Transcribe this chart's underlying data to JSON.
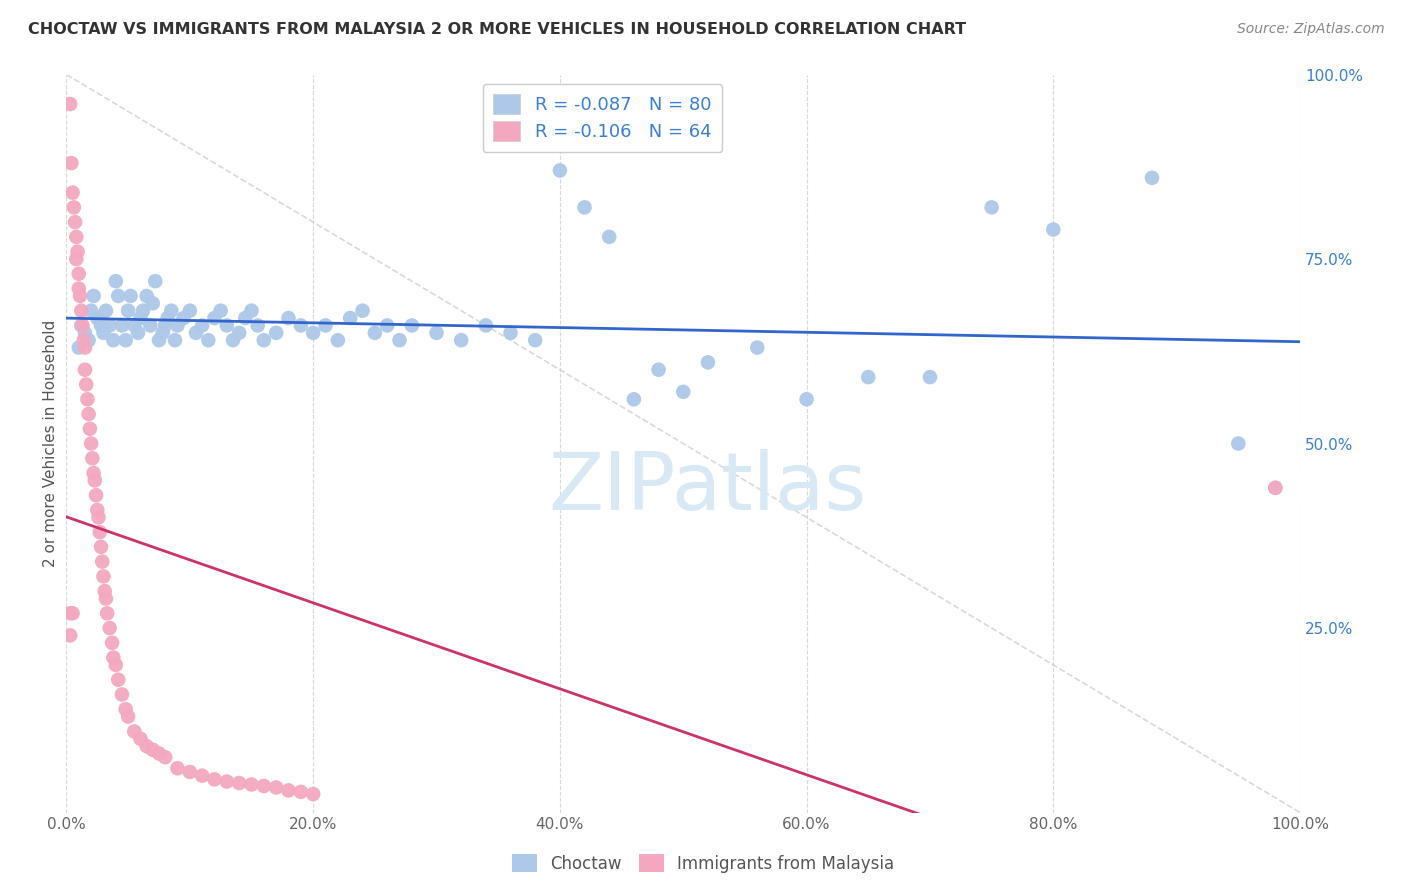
{
  "title": "CHOCTAW VS IMMIGRANTS FROM MALAYSIA 2 OR MORE VEHICLES IN HOUSEHOLD CORRELATION CHART",
  "source": "Source: ZipAtlas.com",
  "ylabel": "2 or more Vehicles in Household",
  "xlim": [
    0,
    1.0
  ],
  "ylim": [
    0,
    1.0
  ],
  "choctaw_R": -0.087,
  "choctaw_N": 80,
  "malaysia_R": -0.106,
  "malaysia_N": 64,
  "choctaw_color": "#adc8e8",
  "malaysia_color": "#f4a8c0",
  "choctaw_line_color": "#3366cc",
  "malaysia_line_color": "#cc3366",
  "diagonal_color": "#d0d0d0",
  "watermark_color": "#d8e8f4",
  "background_color": "#ffffff",
  "title_color": "#333333",
  "source_color": "#888888",
  "right_axis_color": "#3a7fd5",
  "grid_color": "#d8d8d8",
  "choctaw_x": [
    0.01,
    0.012,
    0.015,
    0.018,
    0.02,
    0.022,
    0.025,
    0.028,
    0.03,
    0.032,
    0.035,
    0.038,
    0.04,
    0.042,
    0.045,
    0.048,
    0.05,
    0.052,
    0.055,
    0.058,
    0.06,
    0.062,
    0.065,
    0.068,
    0.07,
    0.072,
    0.075,
    0.078,
    0.08,
    0.082,
    0.085,
    0.088,
    0.09,
    0.095,
    0.1,
    0.105,
    0.11,
    0.115,
    0.12,
    0.125,
    0.13,
    0.135,
    0.14,
    0.145,
    0.15,
    0.155,
    0.16,
    0.17,
    0.18,
    0.19,
    0.2,
    0.21,
    0.22,
    0.23,
    0.24,
    0.25,
    0.26,
    0.27,
    0.28,
    0.3,
    0.32,
    0.34,
    0.36,
    0.38,
    0.4,
    0.42,
    0.44,
    0.46,
    0.48,
    0.5,
    0.52,
    0.56,
    0.6,
    0.65,
    0.7,
    0.75,
    0.8,
    0.88,
    0.95,
    0.98
  ],
  "choctaw_y": [
    0.63,
    0.66,
    0.65,
    0.64,
    0.68,
    0.7,
    0.67,
    0.66,
    0.65,
    0.68,
    0.66,
    0.64,
    0.72,
    0.7,
    0.66,
    0.64,
    0.68,
    0.7,
    0.66,
    0.65,
    0.67,
    0.68,
    0.7,
    0.66,
    0.69,
    0.72,
    0.64,
    0.65,
    0.66,
    0.67,
    0.68,
    0.64,
    0.66,
    0.67,
    0.68,
    0.65,
    0.66,
    0.64,
    0.67,
    0.68,
    0.66,
    0.64,
    0.65,
    0.67,
    0.68,
    0.66,
    0.64,
    0.65,
    0.67,
    0.66,
    0.65,
    0.66,
    0.64,
    0.67,
    0.68,
    0.65,
    0.66,
    0.64,
    0.66,
    0.65,
    0.64,
    0.66,
    0.65,
    0.64,
    0.87,
    0.82,
    0.78,
    0.56,
    0.6,
    0.57,
    0.61,
    0.63,
    0.56,
    0.59,
    0.59,
    0.82,
    0.79,
    0.86,
    0.5,
    0.44
  ],
  "malaysia_x": [
    0.003,
    0.004,
    0.005,
    0.006,
    0.007,
    0.008,
    0.008,
    0.009,
    0.01,
    0.01,
    0.011,
    0.012,
    0.013,
    0.014,
    0.015,
    0.015,
    0.016,
    0.017,
    0.018,
    0.019,
    0.02,
    0.021,
    0.022,
    0.023,
    0.024,
    0.025,
    0.026,
    0.027,
    0.028,
    0.029,
    0.03,
    0.031,
    0.032,
    0.033,
    0.035,
    0.037,
    0.038,
    0.04,
    0.042,
    0.045,
    0.048,
    0.05,
    0.055,
    0.06,
    0.065,
    0.07,
    0.075,
    0.08,
    0.09,
    0.1,
    0.11,
    0.12,
    0.13,
    0.14,
    0.15,
    0.16,
    0.17,
    0.18,
    0.19,
    0.2,
    0.003,
    0.005,
    0.003,
    0.98
  ],
  "malaysia_y": [
    0.96,
    0.88,
    0.84,
    0.82,
    0.8,
    0.78,
    0.75,
    0.76,
    0.73,
    0.71,
    0.7,
    0.68,
    0.66,
    0.64,
    0.63,
    0.6,
    0.58,
    0.56,
    0.54,
    0.52,
    0.5,
    0.48,
    0.46,
    0.45,
    0.43,
    0.41,
    0.4,
    0.38,
    0.36,
    0.34,
    0.32,
    0.3,
    0.29,
    0.27,
    0.25,
    0.23,
    0.21,
    0.2,
    0.18,
    0.16,
    0.14,
    0.13,
    0.11,
    0.1,
    0.09,
    0.085,
    0.08,
    0.075,
    0.06,
    0.055,
    0.05,
    0.045,
    0.042,
    0.04,
    0.038,
    0.036,
    0.034,
    0.03,
    0.028,
    0.025,
    0.27,
    0.27,
    0.24,
    0.44
  ]
}
